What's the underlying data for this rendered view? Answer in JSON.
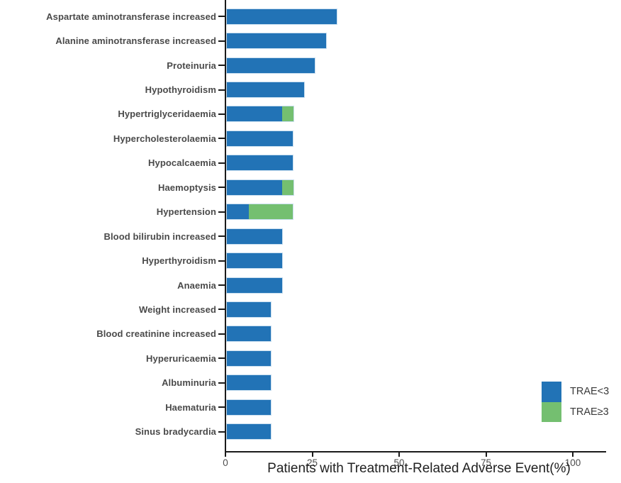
{
  "chart_data": {
    "type": "bar",
    "orientation": "horizontal",
    "stacked": true,
    "title": "",
    "xlabel": "Patients with Treatment-Related Adverse Event(%)",
    "ylabel": "",
    "xlim": [
      0,
      100
    ],
    "x_ticks": [
      0,
      25,
      50,
      75,
      100
    ],
    "grid": false,
    "legend_position": "bottom-right",
    "background": "#ffffff",
    "axis_color": "#1a1a1a",
    "categories": [
      "Aspartate aminotransferase increased",
      "Alanine aminotransferase increased",
      "Proteinuria",
      "Hypothyroidism",
      "Hypertriglyceridaemia",
      "Hypercholesterolaemia",
      "Hypocalcaemia",
      "Haemoptysis",
      "Hypertension",
      "Blood bilirubin increased",
      "Hyperthyroidism",
      "Anaemia",
      "Weight increased",
      "Blood creatinine increased",
      "Hyperuricaemia",
      "Albuminuria",
      "Haematuria",
      "Sinus bradycardia"
    ],
    "series": [
      {
        "name": "TRAE<3",
        "color": "#2273b6",
        "values": [
          31.7,
          28.6,
          25.4,
          22.2,
          15.9,
          19.0,
          19.0,
          15.9,
          6.3,
          15.9,
          15.9,
          15.9,
          12.7,
          12.7,
          12.7,
          12.7,
          12.7,
          12.7
        ]
      },
      {
        "name": "TRAE≥3",
        "color": "#74bf70",
        "values": [
          0,
          0,
          0,
          0,
          3.2,
          0,
          0,
          3.2,
          12.7,
          0,
          0,
          0,
          0,
          0,
          0,
          0,
          0,
          0
        ]
      }
    ]
  }
}
